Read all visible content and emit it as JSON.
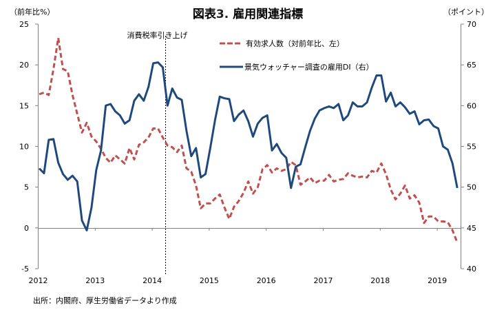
{
  "chart_data": {
    "type": "line",
    "title": "図表3. 雇用関連指標",
    "title_prefix": "図表",
    "title_number": "3.",
    "title_rest": " 雇用関連指標",
    "left_axis": {
      "unit_label": "（前年比%）",
      "ylim": [
        -5,
        25
      ],
      "ticks": [
        "25",
        "20",
        "15",
        "10",
        "5",
        "0",
        "-5"
      ],
      "tick_values": [
        25,
        20,
        15,
        10,
        5,
        0,
        -5
      ]
    },
    "right_axis": {
      "unit_label": "（ポイント）",
      "ylim": [
        40,
        70
      ],
      "ticks": [
        "70",
        "65",
        "60",
        "55",
        "50",
        "45",
        "40"
      ],
      "tick_values": [
        70,
        65,
        60,
        55,
        50,
        45,
        40
      ]
    },
    "x_axis": {
      "start": "2012-01",
      "frequency": "monthly",
      "tick_labels": [
        "2012",
        "2013",
        "2014",
        "2015",
        "2016",
        "2017",
        "2018",
        "2019"
      ],
      "total_months": 89
    },
    "grid": false,
    "annotation": {
      "text": "消費税率引き上げ",
      "at": "2014-04",
      "style": "dashed-vertical-line"
    },
    "legend_position": "top-center",
    "series": [
      {
        "name": "有効求人数（対前年比、左）",
        "axis": "left",
        "color": "#C0504D",
        "style": "dashed",
        "values": [
          16.4,
          16.6,
          16.3,
          19.5,
          23.3,
          19.5,
          19.2,
          16.3,
          14.0,
          11.7,
          12.9,
          11.2,
          10.6,
          9.7,
          8.6,
          8.0,
          8.9,
          8.4,
          7.9,
          9.8,
          8.4,
          10.2,
          10.5,
          11.1,
          12.2,
          12.2,
          11.1,
          10.1,
          9.9,
          9.3,
          10.1,
          7.3,
          6.9,
          5.2,
          2.4,
          3.0,
          3.0,
          3.6,
          4.1,
          2.5,
          1.1,
          2.6,
          3.3,
          4.3,
          5.7,
          4.2,
          5.0,
          7.2,
          7.7,
          6.8,
          7.3,
          7.0,
          7.2,
          8.1,
          7.7,
          5.3,
          5.7,
          6.2,
          5.5,
          5.8,
          5.8,
          6.5,
          5.7,
          5.9,
          6.0,
          6.7,
          6.4,
          6.2,
          6.3,
          6.2,
          7.0,
          6.8,
          7.9,
          6.6,
          4.7,
          3.5,
          4.2,
          5.2,
          3.6,
          4.0,
          3.1,
          0.6,
          1.4,
          1.4,
          0.8,
          0.8,
          0.7,
          -0.3,
          -1.8
        ]
      },
      {
        "name": "景気ウォッチャー調査の雇用DI（右）",
        "axis": "right",
        "color": "#1F497D",
        "style": "solid",
        "values": [
          52.3,
          51.7,
          55.8,
          55.9,
          53.0,
          51.6,
          50.9,
          51.4,
          50.7,
          45.9,
          44.7,
          47.5,
          52.1,
          54.5,
          60.0,
          60.2,
          59.3,
          58.8,
          57.8,
          58.2,
          60.6,
          61.4,
          60.6,
          62.3,
          65.2,
          65.3,
          64.7,
          60.0,
          62.1,
          61.0,
          60.7,
          56.9,
          53.8,
          54.8,
          51.2,
          51.6,
          54.8,
          58.2,
          61.1,
          60.9,
          60.8,
          58.1,
          58.9,
          59.4,
          58.1,
          56.2,
          57.8,
          58.5,
          58.8,
          54.5,
          55.3,
          54.2,
          53.6,
          49.9,
          52.5,
          52.8,
          54.9,
          56.9,
          58.4,
          59.4,
          59.7,
          59.9,
          59.7,
          60.2,
          58.2,
          58.8,
          60.4,
          59.9,
          59.9,
          60.4,
          62.2,
          63.7,
          63.7,
          60.5,
          61.6,
          59.9,
          60.4,
          59.8,
          59.0,
          59.3,
          57.7,
          58.2,
          58.3,
          57.5,
          57.2,
          55.0,
          54.6,
          52.9,
          49.9
        ]
      }
    ],
    "source": "出所：内閣府、厚生労働省データより作成"
  }
}
